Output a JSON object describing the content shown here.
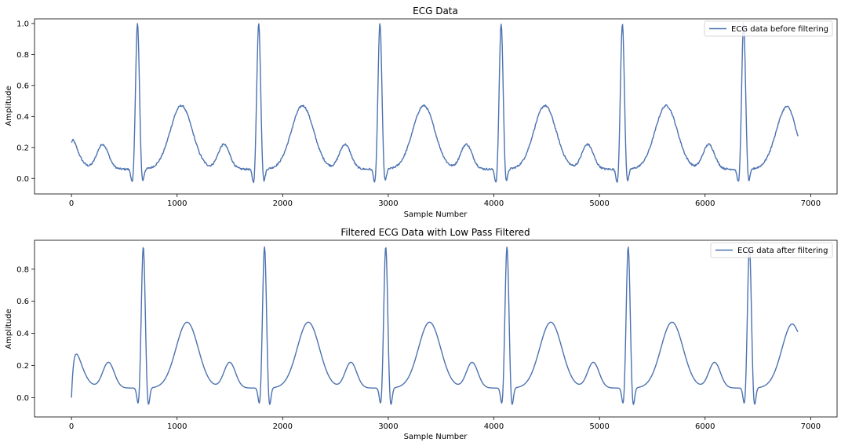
{
  "chart_data": [
    {
      "type": "line",
      "title": "ECG Data",
      "xlabel": "Sample Number",
      "ylabel": "Amplitude",
      "xlim": [
        -350,
        7250
      ],
      "ylim": [
        -0.1,
        1.03
      ],
      "xticks": [
        0,
        1000,
        2000,
        3000,
        4000,
        5000,
        6000,
        7000
      ],
      "yticks": [
        0.0,
        0.2,
        0.4,
        0.6,
        0.8,
        1.0
      ],
      "ytick_labels": [
        "0.0",
        "0.2",
        "0.4",
        "0.6",
        "0.8",
        "1.0"
      ],
      "legend_position": "top-right",
      "series": [
        {
          "name": "ECG data before filtering",
          "color": "#4c72b0",
          "x_start": 0,
          "x_end": 6880,
          "beat_period": 1148,
          "first_r_peak": 625,
          "p_wave": 0.22,
          "t_wave": 0.47,
          "baseline": 0.06,
          "q_dip": -0.05,
          "s_dip": -0.04,
          "r_peak": 1.0,
          "start_value": 0.23,
          "end_value": 0.27,
          "noisy": true
        }
      ]
    },
    {
      "type": "line",
      "title": "Filtered ECG Data with Low Pass Filtered",
      "xlabel": "Sample Number",
      "ylabel": "Amplitude",
      "xlim": [
        -350,
        7250
      ],
      "ylim": [
        -0.12,
        0.98
      ],
      "xticks": [
        0,
        1000,
        2000,
        3000,
        4000,
        5000,
        6000,
        7000
      ],
      "yticks": [
        0.0,
        0.2,
        0.4,
        0.6,
        0.8
      ],
      "ytick_labels": [
        "0.0",
        "0.2",
        "0.4",
        "0.6",
        "0.8"
      ],
      "legend_position": "top-right",
      "series": [
        {
          "name": "ECG data after filtering",
          "color": "#4c72b0",
          "x_start": 0,
          "x_end": 6880,
          "beat_period": 1148,
          "first_r_peak": 680,
          "p_wave": 0.22,
          "t_wave": 0.47,
          "baseline": 0.06,
          "q_dip": -0.06,
          "s_dip": -0.07,
          "r_peak": 0.94,
          "start_value": 0.0,
          "end_value": 0.41,
          "noisy": false
        }
      ]
    }
  ]
}
